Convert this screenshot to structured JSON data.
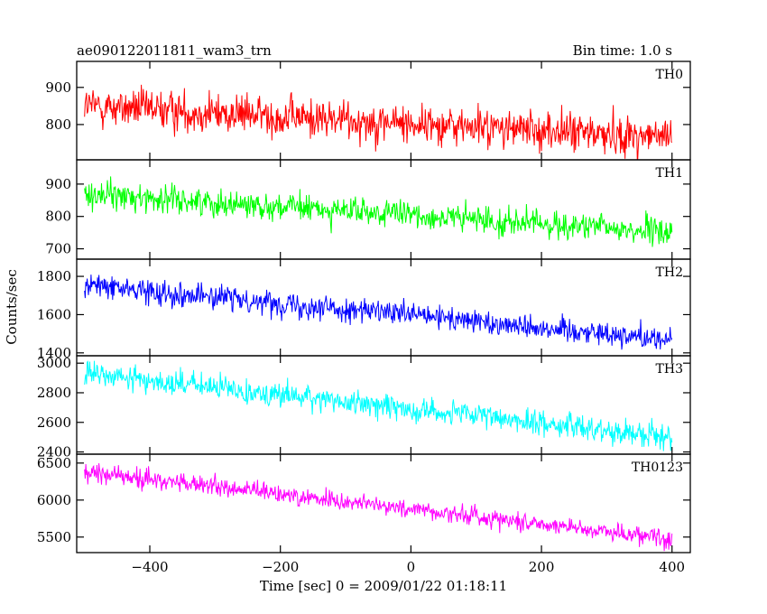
{
  "header": {
    "left_title": "ae090122011811_wam3_trn",
    "right_title": "Bin time: 1.0 s"
  },
  "chart_data": {
    "type": "line",
    "title": "ae090122011811_wam3_trn",
    "subtitle": "Bin time: 1.0 s",
    "xlabel": "Time [sec] 0 = 2009/01/22 01:18:11",
    "ylabel": "Counts/sec",
    "xlim": [
      -512,
      428
    ],
    "x_ticks": [
      -400,
      -200,
      0,
      200,
      400
    ],
    "x_tick_labels": [
      "−400",
      "−200",
      "0",
      "200",
      "400"
    ],
    "x_start": -500,
    "x_end": 400,
    "x_step": 1,
    "panels": [
      {
        "name": "TH0",
        "color": "#ff0000",
        "ylim": [
          705,
          970
        ],
        "y_ticks": [
          800,
          900
        ],
        "y_tick_labels": [
          "800",
          "900"
        ],
        "trend_start": 850,
        "trend_end": 765,
        "noise": 38
      },
      {
        "name": "TH1",
        "color": "#00ff00",
        "ylim": [
          668,
          975
        ],
        "y_ticks": [
          700,
          800,
          900
        ],
        "y_tick_labels": [
          "700",
          "800",
          "900"
        ],
        "trend_start": 870,
        "trend_end": 750,
        "noise": 30
      },
      {
        "name": "TH2",
        "color": "#0000ff",
        "ylim": [
          1385,
          1890
        ],
        "y_ticks": [
          1400,
          1600,
          1800
        ],
        "y_tick_labels": [
          "1400",
          "1600",
          "1800"
        ],
        "trend_start": 1755,
        "trend_end": 1470,
        "noise": 45
      },
      {
        "name": "TH3",
        "color": "#00ffff",
        "ylim": [
          2385,
          3050
        ],
        "y_ticks": [
          2400,
          2600,
          2800,
          3000
        ],
        "y_tick_labels": [
          "2400",
          "2600",
          "2800",
          "3000"
        ],
        "trend_start": 2930,
        "trend_end": 2500,
        "noise": 60
      },
      {
        "name": "TH0123",
        "color": "#ff00ff",
        "ylim": [
          5290,
          6620
        ],
        "y_ticks": [
          5500,
          6000,
          6500
        ],
        "y_tick_labels": [
          "5500",
          "6000",
          "6500"
        ],
        "trend_start": 6380,
        "trend_end": 5480,
        "noise": 90
      }
    ]
  }
}
